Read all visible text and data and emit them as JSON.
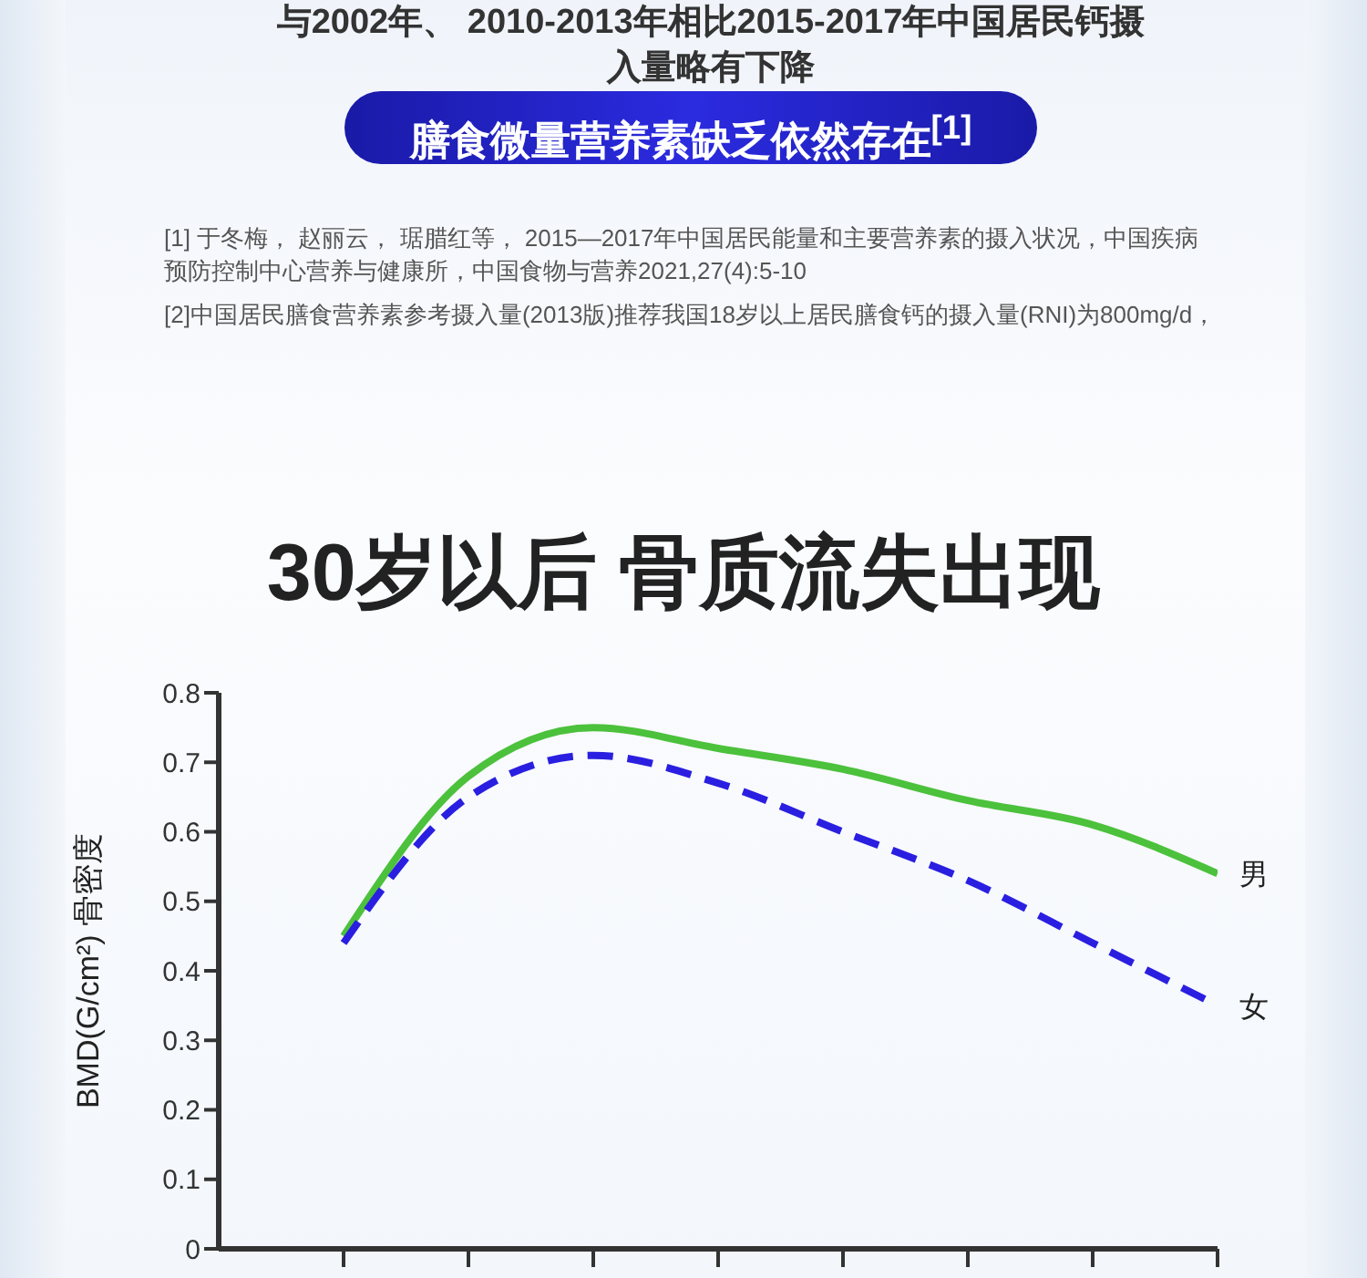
{
  "chart_data": {
    "type": "line",
    "title": "30岁以后 骨质流失出现",
    "ylabel": "BMD(G/cm²) 骨密度",
    "annotations": [
      "与2002年、 2010-2013年相比2015-2017年中国居民钙摄入量略有下降",
      "膳食微量营养素缺乏依然存在$^{[1]}$",
      "[1] 于冬梅， 赵丽云， 琚腊红等， 2015—2017年中国居民能量和主要营养素的摄入状况，中国疾病预防控制中心营养与健康所，中国食物与营养2021,27(4):5-10",
      "[2]中国居民膳食营养素参考摄入量(2013版)推荐我国18岁以上居民膳食钙的摄入量(RNI)为800mg/d，"
    ],
    "categories": [
      null,
      null,
      null,
      null,
      null,
      null,
      null,
      null
    ],
    "series": [
      {
        "name": "男",
        "color": "#4cc13c",
        "line_style": "solid",
        "values": [
          0.45,
          0.68,
          0.75,
          0.72,
          0.69,
          0.645,
          0.61,
          0.54
        ]
      },
      {
        "name": "女",
        "color": "#2a1fe0",
        "line_style": "dashed",
        "values": [
          0.44,
          0.65,
          0.71,
          0.67,
          0.6,
          0.53,
          0.44,
          0.35
        ]
      }
    ],
    "ylim": [
      0,
      0.8
    ],
    "yticks": [
      0,
      0.1,
      0.2,
      0.3,
      0.4,
      0.5,
      0.6,
      0.7,
      0.8
    ],
    "grid": false,
    "legend": false
  }
}
